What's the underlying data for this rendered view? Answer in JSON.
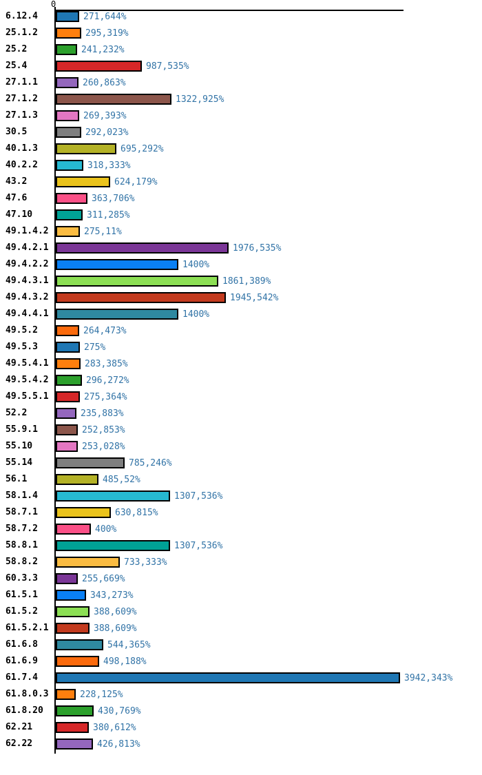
{
  "axis": {
    "zero_tick_label": "0",
    "axis_color": "#000000"
  },
  "styles": {
    "value_label_color": "#3173a6",
    "bar_border_color": "#000000",
    "background": "#ffffff"
  },
  "chart_data": {
    "type": "bar",
    "orientation": "horizontal",
    "title": "",
    "xlabel": "",
    "ylabel": "",
    "unit": "%",
    "xlim": [
      0,
      3990
    ],
    "grid": false,
    "legend": "none",
    "categories": [
      "6.12.4",
      "25.1.2",
      "25.2",
      "25.4",
      "27.1.1",
      "27.1.2",
      "27.1.3",
      "30.5",
      "40.1.3",
      "40.2.2",
      "43.2",
      "47.6",
      "47.10",
      "49.1.4.2",
      "49.4.2.1",
      "49.4.2.2",
      "49.4.3.1",
      "49.4.3.2",
      "49.4.4.1",
      "49.5.2",
      "49.5.3",
      "49.5.4.1",
      "49.5.4.2",
      "49.5.5.1",
      "52.2",
      "55.9.1",
      "55.10",
      "55.14",
      "56.1",
      "58.1.4",
      "58.7.1",
      "58.7.2",
      "58.8.1",
      "58.8.2",
      "60.3.3",
      "61.5.1",
      "61.5.2",
      "61.5.2.1",
      "61.6.8",
      "61.6.9",
      "61.7.4",
      "61.8.0.3",
      "61.8.20",
      "62.21",
      "62.22"
    ],
    "values": [
      271.644,
      295.319,
      241.232,
      987.535,
      260.863,
      1322.925,
      269.393,
      292.023,
      695.292,
      318.333,
      624.179,
      363.706,
      311.285,
      275.11,
      1976.535,
      1400,
      1861.389,
      1945.542,
      1400,
      264.473,
      275,
      283.385,
      296.272,
      275.364,
      235.883,
      252.853,
      253.028,
      785.246,
      485.52,
      1307.536,
      630.815,
      400,
      1307.536,
      733.333,
      255.669,
      343.273,
      388.609,
      388.609,
      544.365,
      498.188,
      3942.343,
      228.125,
      430.769,
      380.612,
      426.813
    ],
    "value_labels": [
      "271,644%",
      "295,319%",
      "241,232%",
      "987,535%",
      "260,863%",
      "1322,925%",
      "269,393%",
      "292,023%",
      "695,292%",
      "318,333%",
      "624,179%",
      "363,706%",
      "311,285%",
      "275,11%",
      "1976,535%",
      "1400%",
      "1861,389%",
      "1945,542%",
      "1400%",
      "264,473%",
      "275%",
      "283,385%",
      "296,272%",
      "275,364%",
      "235,883%",
      "252,853%",
      "253,028%",
      "785,246%",
      "485,52%",
      "1307,536%",
      "630,815%",
      "400%",
      "1307,536%",
      "733,333%",
      "255,669%",
      "343,273%",
      "388,609%",
      "388,609%",
      "544,365%",
      "498,188%",
      "3942,343%",
      "228,125%",
      "430,769%",
      "380,612%",
      "426,813%"
    ],
    "bar_colors": [
      "#1f77b4",
      "#ff7f0e",
      "#2ca02c",
      "#d62728",
      "#9467bd",
      "#8c564b",
      "#e377c2",
      "#7f7f7f",
      "#b4b226",
      "#26b9d1",
      "#eac31c",
      "#fb5087",
      "#00a296",
      "#fbbc42",
      "#7b3697",
      "#0a80f5",
      "#8cdf54",
      "#c33a1e",
      "#2f89a0",
      "#fb6a0d",
      "#1f77b4",
      "#ff7f0e",
      "#2ca02c",
      "#d62728",
      "#9467bd",
      "#8c564b",
      "#e377c2",
      "#7f7f7f",
      "#b4b226",
      "#26b9d1",
      "#eac31c",
      "#fb5087",
      "#00a296",
      "#fbbc42",
      "#7b3697",
      "#0a80f5",
      "#8cdf54",
      "#c33a1e",
      "#2f89a0",
      "#fb6a0d",
      "#1f77b4",
      "#ff7f0e",
      "#2ca02c",
      "#d62728",
      "#9467bd"
    ]
  }
}
